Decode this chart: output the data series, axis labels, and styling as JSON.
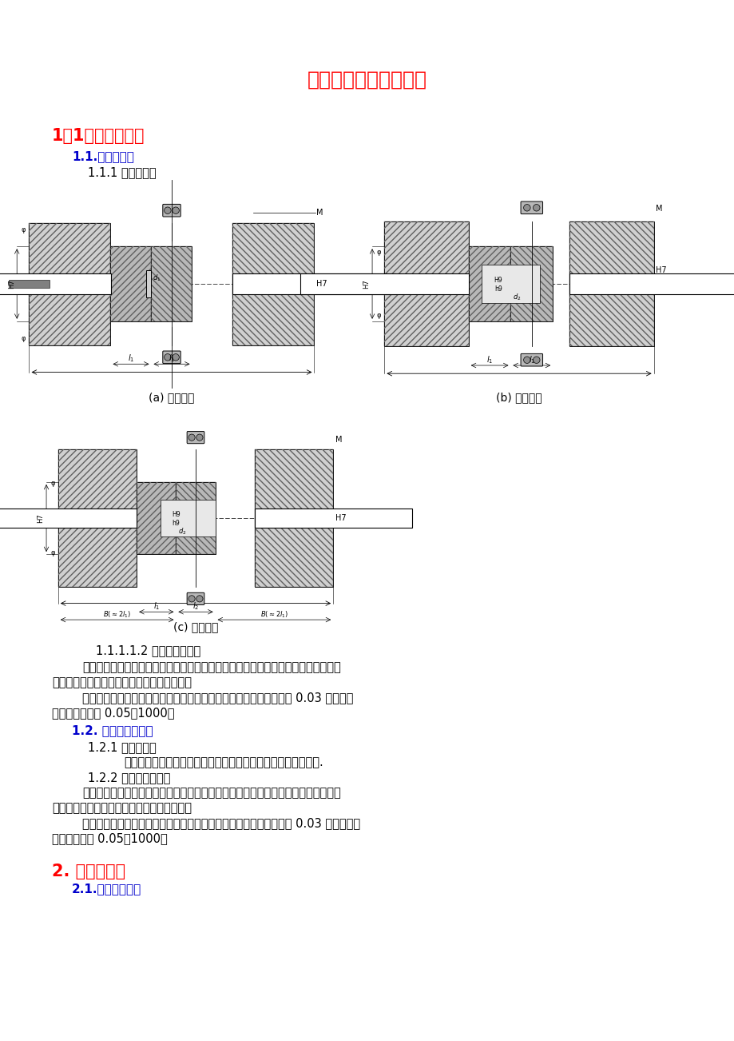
{
  "title": "常用联轴器安装与使用",
  "title_color": "#FF0000",
  "title_fontsize": 18,
  "bg_color": "#FFFFFF",
  "section1_heading": "1．1．刚性联轴器",
  "section1_color": "#FF0000",
  "section1_fontsize": 15,
  "section11_heading": "1.1.凸缘联轴器",
  "section11_color": "#0000CC",
  "section11_fontsize": 11,
  "section111_heading": "1.1.1 常用种类：",
  "section111_color": "#000000",
  "section111_fontsize": 10.5,
  "caption_a": "(a) 有对中榫",
  "caption_b": "(b) 无对中榫",
  "caption_c": "(c) 带防护缘",
  "caption_color": "#000000",
  "caption_fontsize": 10,
  "para1_heading": "1.1.1.1.2 安装检修要求：",
  "body_color": "#000000",
  "body_fontsize": 10.5,
  "body_lines": [
    "采用联轴器传动的机器，联轴器两轴的对中偏差及联轴器的端面间隙，应符合机器的技术文件要求。若无要求，应符合下列规定：",
    "两半联轴器端面应紧密接触，其两轴的对中偏差：径向位移应不大于 0.03 毫米，轴向倾斜应不大于 0.05／1000。"
  ],
  "section12_heading": "1.2. 其他刚性联轴器",
  "section12_color": "#0000CC",
  "section12_fontsize": 11,
  "section121_heading": "1.2.1 常用种类：",
  "section121_indent": "套筒联轴器、夹壳联轴器、紧箍夹壳联轴器、凸缘夹壳联轴器等.",
  "section122_heading": "1.2.2 安装检修要求：",
  "body_lines2": [
    "采用联轴器传动的机器，联轴器两轴的对中偏差及联轴器的端面间隙，应符合机器的技术文件要求。若无要求，应符合下列规定：",
    "两半联轴器端面应紧密接触，其两轴的对中偏差：径向位移应不大于 0.03 毫米，轴向倾斜应不大于 0.05／1000。"
  ],
  "section2_heading": "2. 挠性联轴器",
  "section2_color": "#FF0000",
  "section2_fontsize": 15,
  "section21_heading": "2.1.滑块联轴器：",
  "section21_color": "#0000CC",
  "section21_fontsize": 11
}
